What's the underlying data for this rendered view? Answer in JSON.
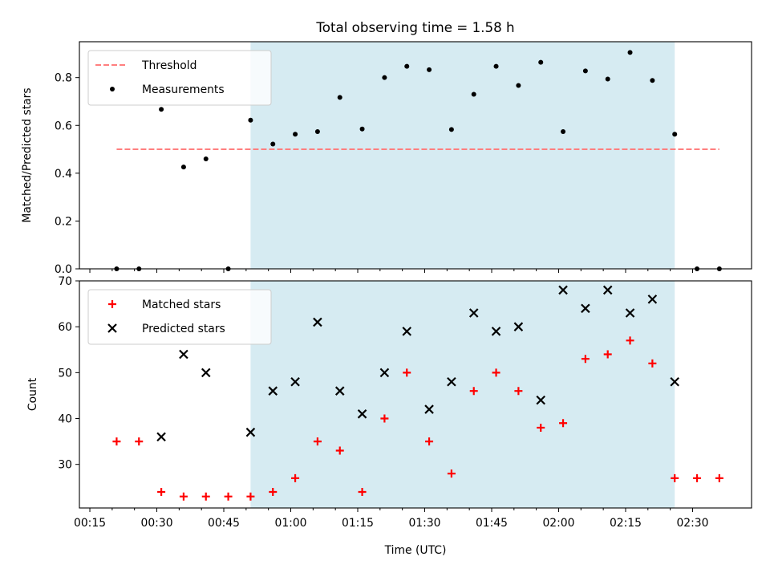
{
  "chart_data": [
    {
      "type": "scatter",
      "title": "Total observing time = 1.58 h",
      "xlabel": "",
      "ylabel": "Matched/Predicted stars",
      "ylim": [
        0,
        0.95
      ],
      "yticks": [
        "0.0",
        "0.2",
        "0.4",
        "0.6",
        "0.8"
      ],
      "ytick_values": [
        0,
        0.2,
        0.4,
        0.6,
        0.8
      ],
      "legend_position": "upper-left",
      "shaded_interval": [
        "00:51",
        "02:26"
      ],
      "shade_color": "#add8e6",
      "threshold": {
        "name": "Threshold",
        "value": 0.5,
        "x_range": [
          "00:21",
          "02:36"
        ],
        "color": "#ff7f7f"
      },
      "series": [
        {
          "name": "Measurements",
          "marker": "dot",
          "color": "#000000",
          "x": [
            "00:21",
            "00:26",
            "00:31",
            "00:36",
            "00:41",
            "00:46",
            "00:51",
            "00:56",
            "01:01",
            "01:06",
            "01:11",
            "01:16",
            "01:21",
            "01:26",
            "01:31",
            "01:36",
            "01:41",
            "01:46",
            "01:51",
            "01:56",
            "02:01",
            "02:06",
            "02:11",
            "02:16",
            "02:21",
            "02:26",
            "02:31",
            "02:36"
          ],
          "y": [
            0.0,
            0.0,
            0.667,
            0.426,
            0.46,
            0.0,
            0.622,
            0.522,
            0.563,
            0.574,
            0.717,
            0.585,
            0.8,
            0.847,
            0.833,
            0.583,
            0.73,
            0.847,
            0.767,
            0.864,
            0.574,
            0.828,
            0.794,
            0.905,
            0.788,
            0.563,
            0.0,
            0.0
          ]
        }
      ]
    },
    {
      "type": "scatter",
      "title": "",
      "xlabel": "Time (UTC)",
      "ylabel": "Count",
      "ylim": [
        20.5,
        70
      ],
      "yticks": [
        "30",
        "40",
        "50",
        "60",
        "70"
      ],
      "ytick_values": [
        30,
        40,
        50,
        60,
        70
      ],
      "xticks": [
        "00:15",
        "00:30",
        "00:45",
        "01:00",
        "01:15",
        "01:30",
        "01:45",
        "02:00",
        "02:15",
        "02:30"
      ],
      "legend_position": "upper-left",
      "shaded_interval": [
        "00:51",
        "02:26"
      ],
      "shade_color": "#add8e6",
      "series": [
        {
          "name": "Matched stars",
          "marker": "plus",
          "color": "#ff0000",
          "x": [
            "00:21",
            "00:26",
            "00:31",
            "00:36",
            "00:41",
            "00:46",
            "00:51",
            "00:56",
            "01:01",
            "01:06",
            "01:11",
            "01:16",
            "01:21",
            "01:26",
            "01:31",
            "01:36",
            "01:41",
            "01:46",
            "01:51",
            "01:56",
            "02:01",
            "02:06",
            "02:11",
            "02:16",
            "02:21",
            "02:26",
            "02:31",
            "02:36"
          ],
          "y": [
            35,
            35,
            24,
            23,
            23,
            23,
            23,
            24,
            27,
            35,
            33,
            24,
            40,
            50,
            35,
            28,
            46,
            50,
            46,
            38,
            39,
            53,
            54,
            57,
            52,
            27,
            27,
            27
          ]
        },
        {
          "name": "Predicted stars",
          "marker": "x",
          "color": "#000000",
          "x": [
            "00:31",
            "00:36",
            "00:41",
            "00:51",
            "00:56",
            "01:01",
            "01:06",
            "01:11",
            "01:16",
            "01:21",
            "01:26",
            "01:31",
            "01:36",
            "01:41",
            "01:46",
            "01:51",
            "01:56",
            "02:01",
            "02:06",
            "02:11",
            "02:16",
            "02:21",
            "02:26"
          ],
          "y": [
            36,
            54,
            50,
            37,
            46,
            48,
            61,
            46,
            41,
            50,
            59,
            42,
            48,
            63,
            59,
            60,
            44,
            68,
            64,
            68,
            63,
            66,
            48
          ]
        }
      ]
    }
  ]
}
